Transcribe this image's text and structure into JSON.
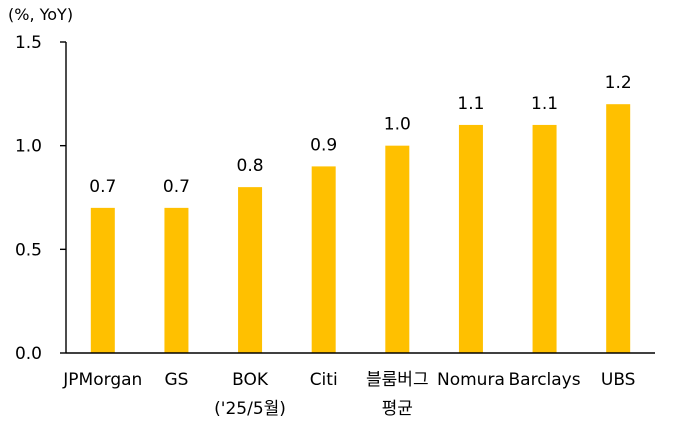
{
  "chart_data": {
    "type": "bar",
    "unit_label": "(%, YoY)",
    "title": "",
    "xlabel": "",
    "ylabel": "",
    "ylim": [
      0,
      1.5
    ],
    "yticks": [
      "0.0",
      "0.5",
      "1.0",
      "1.5"
    ],
    "ytick_values": [
      0,
      0.5,
      1.0,
      1.5
    ],
    "grid": false,
    "bar_color": "#FFC000",
    "categories": [
      [
        "JPMorgan"
      ],
      [
        "GS"
      ],
      [
        "BOK",
        "('25/5월)"
      ],
      [
        "Citi"
      ],
      [
        "블룸버그",
        "평균"
      ],
      [
        "Nomura"
      ],
      [
        "Barclays"
      ],
      [
        "UBS"
      ]
    ],
    "values": [
      0.7,
      0.7,
      0.8,
      0.9,
      1.0,
      1.1,
      1.1,
      1.2
    ],
    "data_labels": [
      "0.7",
      "0.7",
      "0.8",
      "0.9",
      "1.0",
      "1.1",
      "1.1",
      "1.2"
    ]
  }
}
